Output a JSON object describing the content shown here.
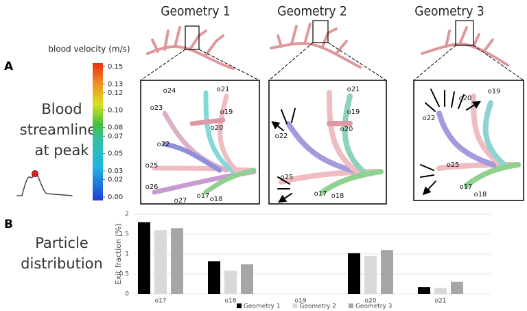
{
  "panel_a": {
    "label": "A",
    "geometry_titles": [
      "Geometry 1",
      "Geometry 2",
      "Geometry 3"
    ],
    "row_label": [
      "Blood",
      "streamlines",
      "at peak"
    ],
    "colorbar": {
      "title": "blood velocity (m/s)",
      "lim": [
        0,
        0.15
      ],
      "ticks": [
        {
          "value": 0,
          "label": "0.00"
        },
        0.02,
        0.03,
        0.05,
        0.07,
        0.08,
        {
          "value": 0.1,
          "label": "0.10"
        },
        0.12,
        0.13,
        0.15
      ]
    },
    "outlet_labels": [
      [
        "o24",
        "o21",
        "o23",
        "o19",
        "o20",
        "o22",
        "o25",
        "o26",
        "o27",
        "o17",
        "o18"
      ],
      [
        "o21",
        "o19",
        "o20",
        "o22",
        "o25",
        "o17",
        "o18"
      ],
      [
        "o19",
        "o20",
        "o22",
        "o25",
        "o17",
        "o18"
      ]
    ]
  },
  "panel_b": {
    "label": "B",
    "row_label": [
      "Particle",
      "distribution"
    ]
  },
  "chart_data": {
    "type": "bar",
    "ylabel": "Exit fraction (%)",
    "categories": [
      "o17",
      "o18",
      "o19",
      "o20",
      "o21"
    ],
    "series": [
      {
        "name": "Geometry 1",
        "color": "#000000",
        "values": [
          1.8,
          0.82,
          0,
          1.02,
          0.17
        ]
      },
      {
        "name": "Geometry 2",
        "color": "#d9d9d9",
        "values": [
          1.6,
          0.58,
          0,
          0.95,
          0.15
        ]
      },
      {
        "name": "Geometry 3",
        "color": "#a6a6a6",
        "values": [
          1.65,
          0.74,
          0,
          1.1,
          0.3
        ]
      }
    ],
    "ylim": [
      0,
      2
    ],
    "yticks": [
      0,
      0.5,
      1,
      1.5,
      2
    ],
    "grid": true,
    "legend": "bottom"
  }
}
